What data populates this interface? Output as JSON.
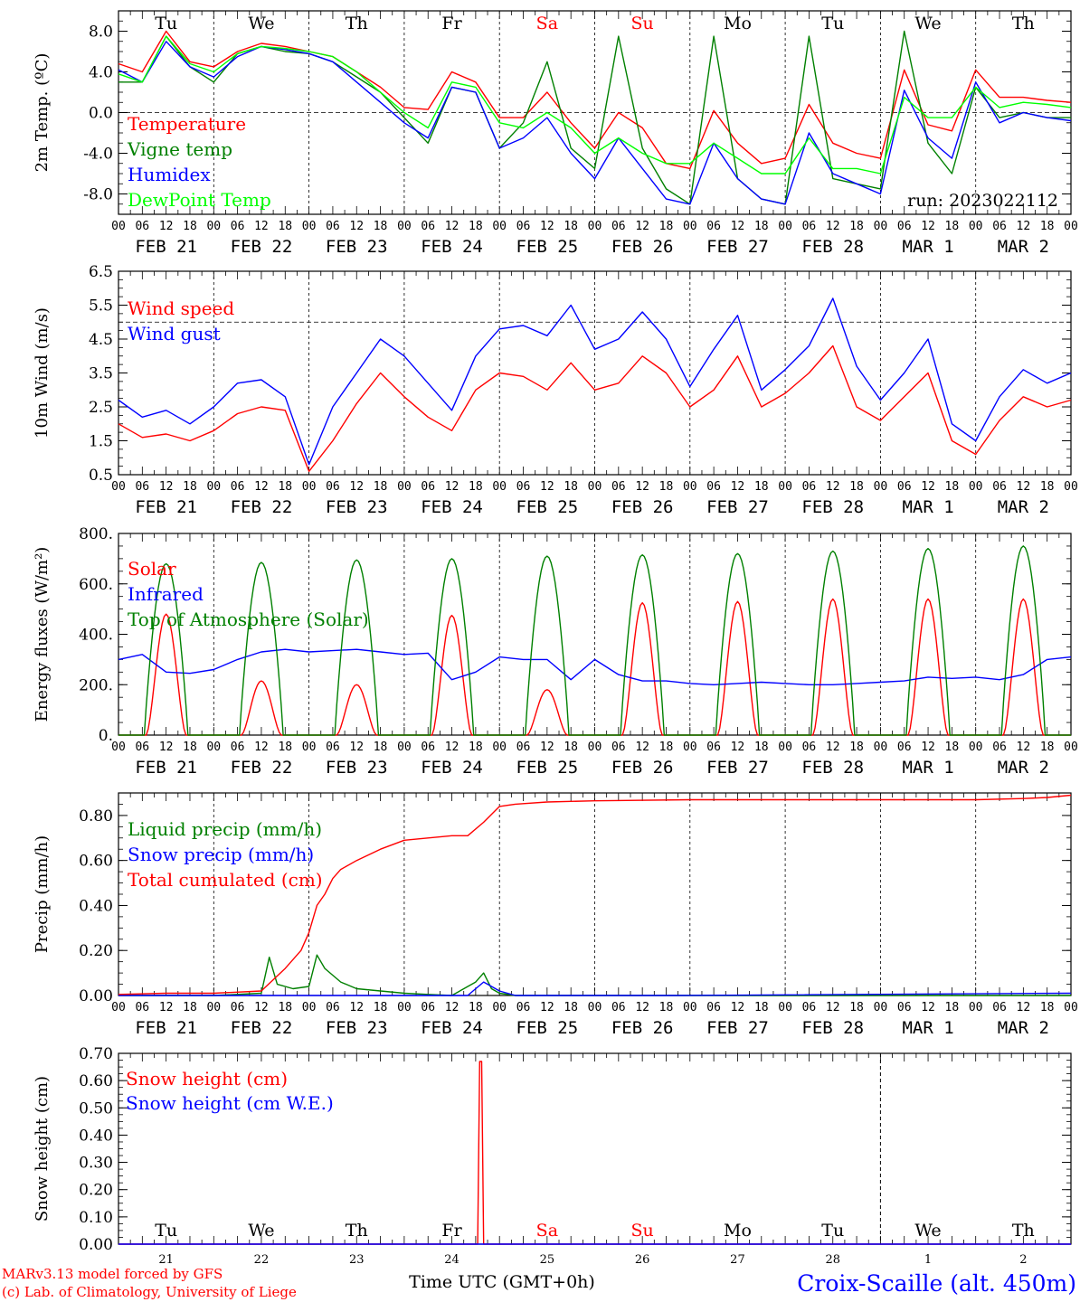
{
  "footer": {
    "credit_model": "MARv3.13 model forced by GFS",
    "credit_lab": "(c) Lab. of Climatology, University of Liege",
    "xlabel": "Time UTC (GMT+0h)",
    "station": "Croix-Scaille (alt. 450m)"
  },
  "run_label": "run: 2023022112",
  "days": {
    "weekdays": [
      "Tu",
      "We",
      "Th",
      "Fr",
      "Sa",
      "Su",
      "Mo",
      "Tu",
      "We",
      "Th"
    ],
    "weekend_indices": [
      4,
      5
    ],
    "date_labels": [
      "FEB 21",
      "FEB 22",
      "FEB 23",
      "FEB 24",
      "FEB 25",
      "FEB 26",
      "FEB 27",
      "FEB 28",
      "MAR  1",
      "MAR  2"
    ],
    "day_numbers": [
      "21",
      "22",
      "23",
      "24",
      "25",
      "26",
      "27",
      "28",
      "1",
      "2"
    ],
    "hour_labels": [
      "00",
      "06",
      "12",
      "18"
    ],
    "month_break_index": 8
  },
  "colors": {
    "red": "#ff0000",
    "darkgreen": "#008000",
    "blue": "#0000ff",
    "lightgreen": "#00ff00",
    "weekend": "#ff0000"
  },
  "chart_data": [
    {
      "type": "line",
      "ylabel": "2m Temp. (ºC)",
      "ylim": [
        -10,
        10
      ],
      "yticks": [
        -8,
        -4,
        0,
        4,
        8
      ],
      "ytick_labels": [
        "-8.0",
        "-4.0",
        "0.0",
        "4.0",
        "8.0"
      ],
      "x_unit": "hours since 2023-02-21 00 UTC",
      "dashed_reference": 0,
      "series": [
        {
          "name": "Temperature",
          "color": "red",
          "x": [
            0,
            6,
            12,
            18,
            24,
            30,
            36,
            42,
            48,
            54,
            60,
            66,
            72,
            78,
            84,
            90,
            96,
            102,
            108,
            114,
            120,
            126,
            132,
            138,
            144,
            150,
            156,
            162,
            168,
            174,
            180,
            186,
            192,
            198,
            204,
            210,
            216,
            222,
            228,
            234,
            240
          ],
          "y": [
            4.8,
            4.0,
            8.0,
            5.0,
            4.5,
            6.0,
            6.8,
            6.5,
            6.0,
            5.5,
            4.0,
            2.5,
            0.5,
            0.3,
            4.0,
            3.0,
            -0.5,
            -0.5,
            2.0,
            -1.0,
            -3.5,
            0.0,
            -1.5,
            -5.0,
            -5.5,
            0.2,
            -3.0,
            -5.0,
            -4.5,
            0.8,
            -3.0,
            -4.0,
            -4.5,
            4.2,
            -1.2,
            -1.8,
            4.2,
            1.5,
            1.5,
            1.2,
            1.0
          ]
        },
        {
          "name": "Vigne temp",
          "color": "darkgreen",
          "x": [
            0,
            6,
            12,
            18,
            24,
            30,
            36,
            42,
            48,
            54,
            60,
            66,
            72,
            78,
            84,
            90,
            96,
            102,
            108,
            114,
            120,
            126,
            132,
            138,
            144,
            150,
            156,
            162,
            168,
            174,
            180,
            186,
            192,
            198,
            204,
            210,
            216,
            222,
            228,
            234,
            240
          ],
          "y": [
            3.0,
            3.0,
            7.5,
            4.5,
            3.0,
            5.8,
            6.5,
            6.0,
            5.8,
            5.0,
            3.5,
            2.0,
            -0.5,
            -3.0,
            2.5,
            2.0,
            -3.5,
            -1.0,
            5.0,
            -3.5,
            -5.5,
            7.5,
            -3.5,
            -7.5,
            -9.0,
            7.5,
            -6.5,
            -8.5,
            -9.0,
            7.5,
            -6.5,
            -7.0,
            -7.5,
            8.0,
            -3.0,
            -6.0,
            2.5,
            -0.5,
            0.0,
            -0.5,
            -0.5
          ]
        },
        {
          "name": "Humidex",
          "color": "blue",
          "x": [
            0,
            6,
            12,
            18,
            24,
            30,
            36,
            42,
            48,
            54,
            60,
            66,
            72,
            78,
            84,
            90,
            96,
            102,
            108,
            114,
            120,
            126,
            132,
            138,
            144,
            150,
            156,
            162,
            168,
            174,
            180,
            186,
            192,
            198,
            204,
            210,
            216,
            222,
            228,
            234,
            240
          ],
          "y": [
            4.2,
            3.0,
            7.0,
            4.5,
            3.5,
            5.5,
            6.5,
            6.2,
            5.8,
            5.0,
            3.0,
            1.0,
            -1.0,
            -2.5,
            2.5,
            2.0,
            -3.5,
            -2.5,
            -0.5,
            -4.0,
            -6.5,
            -2.5,
            -5.5,
            -8.5,
            -9.0,
            -3.0,
            -6.5,
            -8.5,
            -9.0,
            -2.0,
            -6.0,
            -7.0,
            -8.0,
            2.2,
            -2.5,
            -4.5,
            3.0,
            -1.0,
            0.0,
            -0.5,
            -0.8
          ]
        },
        {
          "name": "DewPoint Temp",
          "color": "lightgreen",
          "x": [
            0,
            6,
            12,
            18,
            24,
            30,
            36,
            42,
            48,
            54,
            60,
            66,
            72,
            78,
            84,
            90,
            96,
            102,
            108,
            114,
            120,
            126,
            132,
            138,
            144,
            150,
            156,
            162,
            168,
            174,
            180,
            186,
            192,
            198,
            204,
            210,
            216,
            222,
            228,
            234,
            240
          ],
          "y": [
            3.8,
            3.0,
            7.5,
            4.8,
            4.0,
            5.8,
            6.5,
            6.3,
            6.0,
            5.5,
            4.0,
            2.0,
            0.0,
            -1.5,
            3.0,
            2.5,
            -1.0,
            -1.5,
            0.0,
            -1.5,
            -4.0,
            -2.5,
            -4.0,
            -5.0,
            -5.0,
            -3.0,
            -4.5,
            -6.0,
            -6.0,
            -2.5,
            -5.5,
            -5.5,
            -6.0,
            1.5,
            -0.5,
            -0.5,
            2.5,
            0.5,
            1.0,
            0.8,
            0.5
          ]
        }
      ]
    },
    {
      "type": "line",
      "ylabel": "10m Wind (m/s)",
      "ylim": [
        0.5,
        6.5
      ],
      "yticks": [
        0.5,
        1.5,
        2.5,
        3.5,
        4.5,
        5.5,
        6.5
      ],
      "ytick_labels": [
        "0.5",
        "1.5",
        "2.5",
        "3.5",
        "4.5",
        "5.5",
        "6.5"
      ],
      "x_unit": "hours since 2023-02-21 00 UTC",
      "dashed_reference": 5.0,
      "series": [
        {
          "name": "Wind speed",
          "color": "red",
          "x": [
            0,
            6,
            12,
            18,
            24,
            30,
            36,
            42,
            48,
            54,
            60,
            66,
            72,
            78,
            84,
            90,
            96,
            102,
            108,
            114,
            120,
            126,
            132,
            138,
            144,
            150,
            156,
            162,
            168,
            174,
            180,
            186,
            192,
            198,
            204,
            210,
            216,
            222,
            228,
            234,
            240
          ],
          "y": [
            2.0,
            1.6,
            1.7,
            1.5,
            1.8,
            2.3,
            2.5,
            2.4,
            0.6,
            1.5,
            2.6,
            3.5,
            2.8,
            2.2,
            1.8,
            3.0,
            3.5,
            3.4,
            3.0,
            3.8,
            3.0,
            3.2,
            4.0,
            3.5,
            2.5,
            3.0,
            4.0,
            2.5,
            2.9,
            3.5,
            4.3,
            2.5,
            2.1,
            2.8,
            3.5,
            1.5,
            1.1,
            2.1,
            2.8,
            2.5,
            2.7
          ]
        },
        {
          "name": "Wind gust",
          "color": "blue",
          "x": [
            0,
            6,
            12,
            18,
            24,
            30,
            36,
            42,
            48,
            54,
            60,
            66,
            72,
            78,
            84,
            90,
            96,
            102,
            108,
            114,
            120,
            126,
            132,
            138,
            144,
            150,
            156,
            162,
            168,
            174,
            180,
            186,
            192,
            198,
            204,
            210,
            216,
            222,
            228,
            234,
            240
          ],
          "y": [
            2.7,
            2.2,
            2.4,
            2.0,
            2.5,
            3.2,
            3.3,
            2.8,
            0.8,
            2.5,
            3.5,
            4.5,
            4.0,
            3.2,
            2.4,
            4.0,
            4.8,
            4.9,
            4.6,
            5.5,
            4.2,
            4.5,
            5.3,
            4.5,
            3.1,
            4.2,
            5.2,
            3.0,
            3.6,
            4.3,
            5.7,
            3.7,
            2.7,
            3.5,
            4.5,
            2.0,
            1.5,
            2.8,
            3.6,
            3.2,
            3.5
          ]
        }
      ]
    },
    {
      "type": "line",
      "ylabel": "Energy fluxes (W/m²)",
      "ylim": [
        0,
        800
      ],
      "yticks": [
        0,
        200,
        400,
        600,
        800
      ],
      "ytick_labels": [
        "0.",
        "200.",
        "400.",
        "600.",
        "800."
      ],
      "x_unit": "hours since 2023-02-21 00 UTC",
      "series": [
        {
          "name": "Solar",
          "color": "red",
          "shape": "daily",
          "daily_peaks": [
            480,
            215,
            200,
            475,
            180,
            525,
            530,
            540,
            540,
            540
          ]
        },
        {
          "name": "Infrared",
          "color": "blue",
          "x": [
            0,
            6,
            12,
            18,
            24,
            30,
            36,
            42,
            48,
            54,
            60,
            66,
            72,
            78,
            84,
            90,
            96,
            102,
            108,
            114,
            120,
            126,
            132,
            138,
            144,
            150,
            156,
            162,
            168,
            174,
            180,
            186,
            192,
            198,
            204,
            210,
            216,
            222,
            228,
            234,
            240
          ],
          "y": [
            300,
            320,
            250,
            245,
            260,
            300,
            330,
            340,
            330,
            335,
            340,
            330,
            320,
            325,
            220,
            250,
            310,
            300,
            300,
            220,
            300,
            240,
            215,
            215,
            205,
            200,
            205,
            210,
            205,
            200,
            200,
            205,
            210,
            215,
            230,
            225,
            230,
            220,
            240,
            300,
            310
          ]
        },
        {
          "name": "Top of Atmosphere (Solar)",
          "color": "darkgreen",
          "shape": "daily",
          "daily_peaks": [
            680,
            685,
            695,
            700,
            710,
            715,
            720,
            730,
            740,
            750
          ]
        }
      ]
    },
    {
      "type": "line",
      "ylabel": "Precip (mm/h)",
      "ylim": [
        0,
        0.9
      ],
      "yticks": [
        0,
        0.2,
        0.4,
        0.6,
        0.8
      ],
      "ytick_labels": [
        "0.00",
        "0.20",
        "0.40",
        "0.60",
        "0.80"
      ],
      "x_unit": "hours since 2023-02-21 00 UTC",
      "series": [
        {
          "name": "Liquid precip (mm/h)",
          "color": "darkgreen",
          "x": [
            0,
            24,
            36,
            38,
            40,
            44,
            48,
            50,
            52,
            56,
            60,
            66,
            72,
            78,
            84,
            90,
            92,
            94,
            96,
            100,
            120,
            240
          ],
          "y": [
            0,
            0,
            0.01,
            0.17,
            0.05,
            0.03,
            0.04,
            0.18,
            0.12,
            0.06,
            0.03,
            0.02,
            0.01,
            0.005,
            0.0,
            0.06,
            0.1,
            0.03,
            0.01,
            0,
            0,
            0
          ]
        },
        {
          "name": "Snow precip (mm/h)",
          "color": "blue",
          "x": [
            0,
            88,
            90,
            92,
            94,
            96,
            98,
            100,
            140,
            240
          ],
          "y": [
            0,
            0,
            0.03,
            0.06,
            0.04,
            0.02,
            0.01,
            0,
            0,
            0.01
          ]
        },
        {
          "name": "Total cumulated (cm)",
          "color": "red",
          "x": [
            0,
            12,
            24,
            36,
            42,
            46,
            48,
            50,
            52,
            54,
            56,
            60,
            66,
            72,
            78,
            84,
            88,
            92,
            96,
            100,
            108,
            120,
            144,
            168,
            192,
            216,
            228,
            234,
            240
          ],
          "y": [
            0.005,
            0.01,
            0.01,
            0.02,
            0.12,
            0.2,
            0.28,
            0.4,
            0.45,
            0.52,
            0.56,
            0.6,
            0.65,
            0.69,
            0.7,
            0.71,
            0.71,
            0.77,
            0.84,
            0.85,
            0.86,
            0.865,
            0.87,
            0.87,
            0.87,
            0.87,
            0.875,
            0.88,
            0.89
          ]
        }
      ]
    },
    {
      "type": "line",
      "ylabel": "Snow height (cm)",
      "ylim": [
        0,
        0.7
      ],
      "yticks": [
        0,
        0.1,
        0.2,
        0.3,
        0.4,
        0.5,
        0.6,
        0.7
      ],
      "ytick_labels": [
        "0.00",
        "0.10",
        "0.20",
        "0.30",
        "0.40",
        "0.50",
        "0.60",
        "0.70"
      ],
      "x_unit": "hours since 2023-02-21 00 UTC",
      "series": [
        {
          "name": "Snow height (cm)",
          "color": "red",
          "x": [
            0,
            90.5,
            91,
            91.5,
            92,
            240
          ],
          "y": [
            0,
            0,
            0.67,
            0.67,
            0,
            0
          ]
        },
        {
          "name": "Snow height (cm W.E.)",
          "color": "blue",
          "x": [
            0,
            240
          ],
          "y": [
            0,
            0
          ]
        }
      ]
    }
  ]
}
